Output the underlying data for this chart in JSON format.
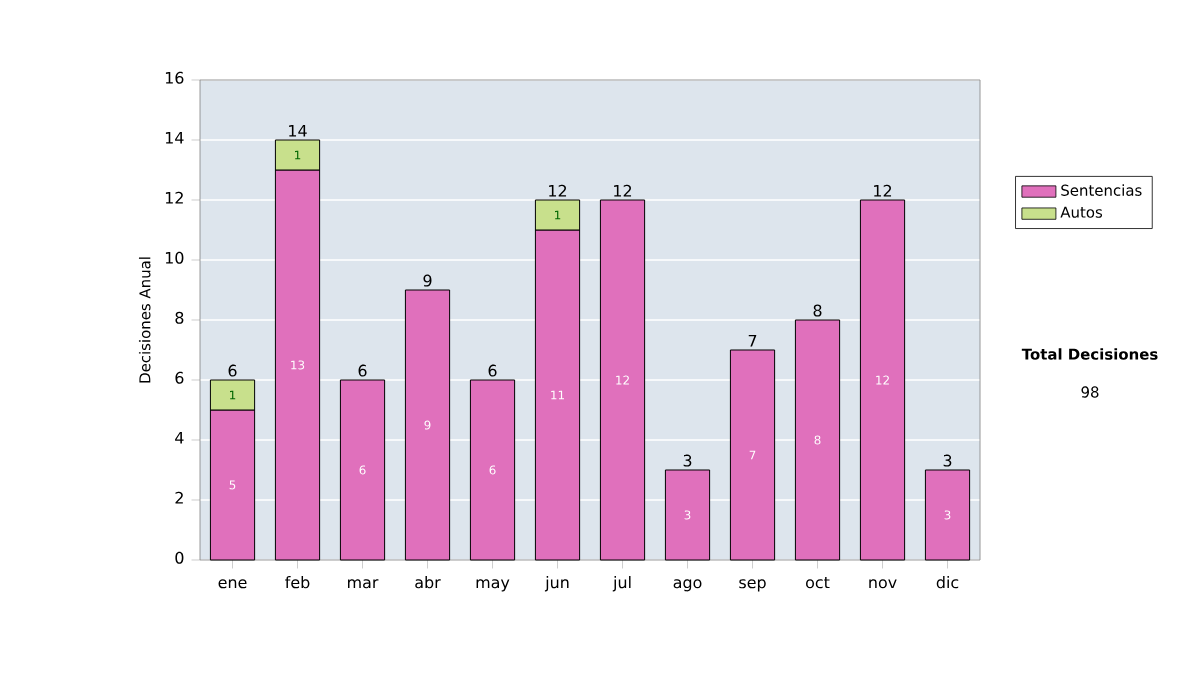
{
  "chart_data": {
    "type": "bar",
    "stacked": true,
    "ylabel": "Decisiones Anual",
    "categories": [
      "ene",
      "feb",
      "mar",
      "abr",
      "may",
      "jun",
      "jul",
      "ago",
      "sep",
      "oct",
      "nov",
      "dic"
    ],
    "series": [
      {
        "name": "Sentencias",
        "color": "#e070bc",
        "values": [
          5,
          13,
          6,
          9,
          6,
          11,
          12,
          3,
          7,
          8,
          12,
          3
        ]
      },
      {
        "name": "Autos",
        "color": "#c8e08c",
        "values": [
          1,
          1,
          null,
          null,
          null,
          1,
          null,
          null,
          null,
          null,
          null,
          null
        ]
      }
    ],
    "ylim": [
      0,
      16
    ],
    "yticks": [
      0,
      2,
      4,
      6,
      8,
      10,
      12,
      14,
      16
    ],
    "grid": "y",
    "legend": "right",
    "data_labels": true,
    "totals": [
      "6",
      "14",
      "6",
      "9",
      "6",
      "12",
      "12",
      "3",
      "7",
      "8",
      "12",
      "3"
    ],
    "annotations": [
      "Total Decisiones",
      "98"
    ]
  }
}
